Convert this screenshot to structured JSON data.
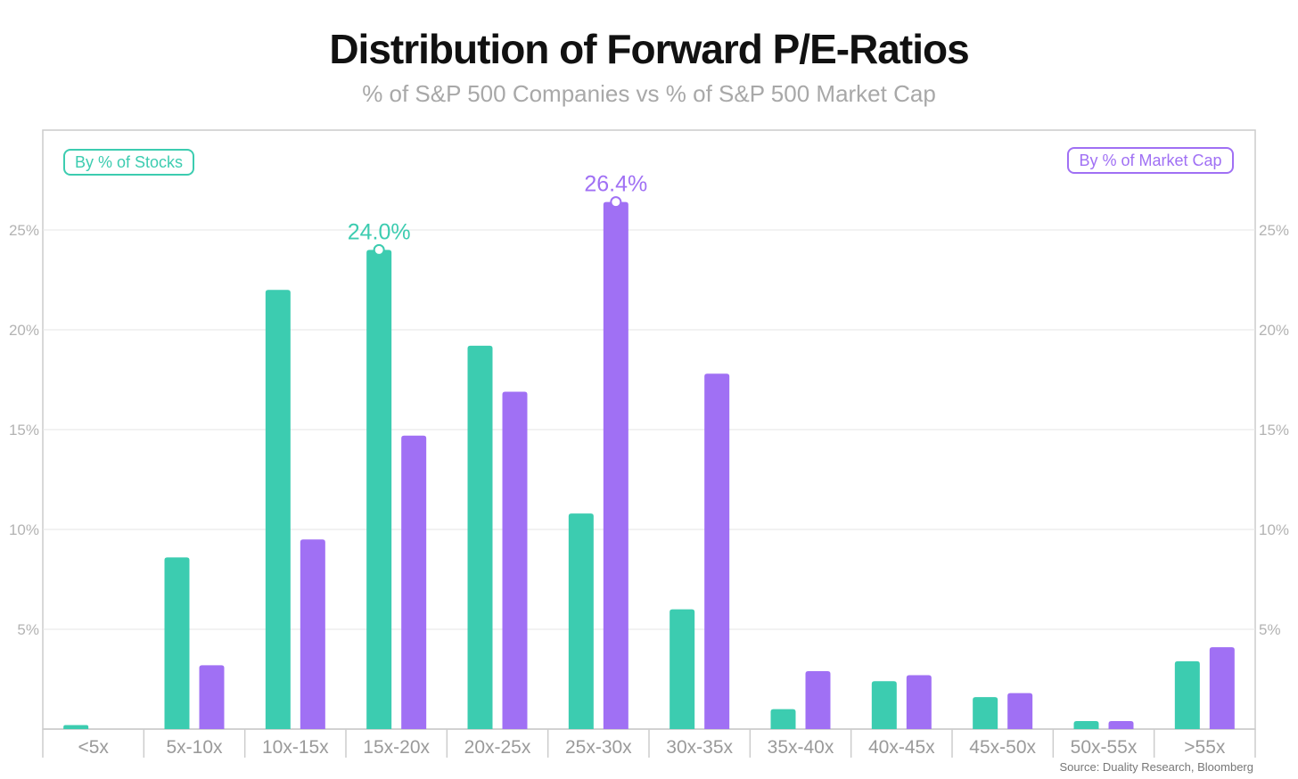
{
  "header": {
    "title": "Distribution of Forward P/E-Ratios",
    "subtitle": "% of S&P 500 Companies vs % of S&P 500 Market Cap"
  },
  "source": "Source: Duality Research, Bloomberg",
  "colors": {
    "stocks": "#3cccb0",
    "marketcap": "#a070f4",
    "grid": "#e6e6e6",
    "axis": "#cccccc"
  },
  "chart_data": {
    "type": "bar",
    "title": "Distribution of Forward P/E-Ratios",
    "subtitle": "% of S&P 500 Companies vs % of S&P 500 Market Cap",
    "xlabel": "",
    "ylabel": "",
    "ylim": [
      0,
      30
    ],
    "yticks": [
      5,
      10,
      15,
      20,
      25
    ],
    "ytick_labels": [
      "5%",
      "10%",
      "15%",
      "20%",
      "25%"
    ],
    "categories": [
      "<5x",
      "5x-10x",
      "10x-15x",
      "15x-20x",
      "20x-25x",
      "25x-30x",
      "30x-35x",
      "35x-40x",
      "40x-45x",
      "45x-50x",
      "50x-55x",
      ">55x"
    ],
    "series": [
      {
        "name": "By % of Stocks",
        "axis": "left",
        "legend_position": "top-left",
        "values": [
          0.2,
          8.6,
          22.0,
          24.0,
          19.2,
          10.8,
          6.0,
          1.0,
          2.4,
          1.6,
          0.4,
          3.4
        ]
      },
      {
        "name": "By % of Market Cap",
        "axis": "right",
        "legend_position": "top-right",
        "values": [
          0,
          3.2,
          9.5,
          14.7,
          16.9,
          26.4,
          17.8,
          2.9,
          2.7,
          1.8,
          0.4,
          4.1
        ]
      }
    ],
    "annotations": [
      {
        "series": "By % of Stocks",
        "category": "15x-20x",
        "text": "24.0%"
      },
      {
        "series": "By % of Market Cap",
        "category": "25x-30x",
        "text": "26.4%"
      }
    ]
  }
}
